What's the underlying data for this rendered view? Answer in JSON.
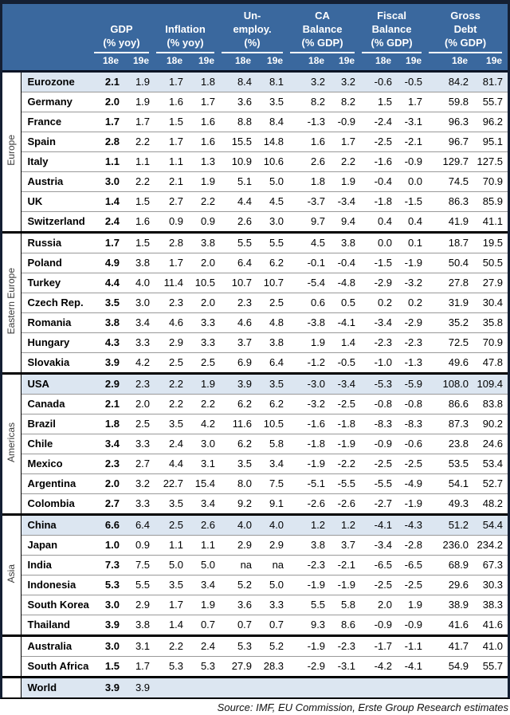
{
  "header": {
    "column_groups": [
      {
        "title_lines": [
          "GDP"
        ],
        "subtitle": "(% yoy)"
      },
      {
        "title_lines": [
          "Inflation"
        ],
        "subtitle": "(% yoy)"
      },
      {
        "title_lines": [
          "Un-",
          "employ."
        ],
        "subtitle": "(%)"
      },
      {
        "title_lines": [
          "CA",
          "Balance"
        ],
        "subtitle": "(% GDP)"
      },
      {
        "title_lines": [
          "Fiscal",
          "Balance"
        ],
        "subtitle": "(% GDP)"
      },
      {
        "title_lines": [
          "Gross",
          "Debt"
        ],
        "subtitle": "(% GDP)"
      }
    ],
    "year_labels": [
      "18e",
      "19e"
    ]
  },
  "groups": [
    {
      "label": "Europe",
      "rows": [
        {
          "country": "Eurozone",
          "highlight": true,
          "values": [
            "2.1",
            "1.9",
            "1.7",
            "1.8",
            "8.4",
            "8.1",
            "3.2",
            "3.2",
            "-0.6",
            "-0.5",
            "84.2",
            "81.7"
          ]
        },
        {
          "country": "Germany",
          "highlight": false,
          "values": [
            "2.0",
            "1.9",
            "1.6",
            "1.7",
            "3.6",
            "3.5",
            "8.2",
            "8.2",
            "1.5",
            "1.7",
            "59.8",
            "55.7"
          ]
        },
        {
          "country": "France",
          "highlight": false,
          "values": [
            "1.7",
            "1.7",
            "1.5",
            "1.6",
            "8.8",
            "8.4",
            "-1.3",
            "-0.9",
            "-2.4",
            "-3.1",
            "96.3",
            "96.2"
          ]
        },
        {
          "country": "Spain",
          "highlight": false,
          "values": [
            "2.8",
            "2.2",
            "1.7",
            "1.6",
            "15.5",
            "14.8",
            "1.6",
            "1.7",
            "-2.5",
            "-2.1",
            "96.7",
            "95.1"
          ]
        },
        {
          "country": "Italy",
          "highlight": false,
          "values": [
            "1.1",
            "1.1",
            "1.1",
            "1.3",
            "10.9",
            "10.6",
            "2.6",
            "2.2",
            "-1.6",
            "-0.9",
            "129.7",
            "127.5"
          ]
        },
        {
          "country": "Austria",
          "highlight": false,
          "values": [
            "3.0",
            "2.2",
            "2.1",
            "1.9",
            "5.1",
            "5.0",
            "1.8",
            "1.9",
            "-0.4",
            "0.0",
            "74.5",
            "70.9"
          ]
        },
        {
          "country": "UK",
          "highlight": false,
          "values": [
            "1.4",
            "1.5",
            "2.7",
            "2.2",
            "4.4",
            "4.5",
            "-3.7",
            "-3.4",
            "-1.8",
            "-1.5",
            "86.3",
            "85.9"
          ]
        },
        {
          "country": "Switzerland",
          "highlight": false,
          "values": [
            "2.4",
            "1.6",
            "0.9",
            "0.9",
            "2.6",
            "3.0",
            "9.7",
            "9.4",
            "0.4",
            "0.4",
            "41.9",
            "41.1"
          ]
        }
      ]
    },
    {
      "label": "Eastern Europe",
      "rows": [
        {
          "country": "Russia",
          "highlight": false,
          "values": [
            "1.7",
            "1.5",
            "2.8",
            "3.8",
            "5.5",
            "5.5",
            "4.5",
            "3.8",
            "0.0",
            "0.1",
            "18.7",
            "19.5"
          ]
        },
        {
          "country": "Poland",
          "highlight": false,
          "values": [
            "4.9",
            "3.8",
            "1.7",
            "2.0",
            "6.4",
            "6.2",
            "-0.1",
            "-0.4",
            "-1.5",
            "-1.9",
            "50.4",
            "50.5"
          ]
        },
        {
          "country": "Turkey",
          "highlight": false,
          "values": [
            "4.4",
            "4.0",
            "11.4",
            "10.5",
            "10.7",
            "10.7",
            "-5.4",
            "-4.8",
            "-2.9",
            "-3.2",
            "27.8",
            "27.9"
          ]
        },
        {
          "country": "Czech Rep.",
          "highlight": false,
          "values": [
            "3.5",
            "3.0",
            "2.3",
            "2.0",
            "2.3",
            "2.5",
            "0.6",
            "0.5",
            "0.2",
            "0.2",
            "31.9",
            "30.4"
          ]
        },
        {
          "country": "Romania",
          "highlight": false,
          "values": [
            "3.8",
            "3.4",
            "4.6",
            "3.3",
            "4.6",
            "4.8",
            "-3.8",
            "-4.1",
            "-3.4",
            "-2.9",
            "35.2",
            "35.8"
          ]
        },
        {
          "country": "Hungary",
          "highlight": false,
          "values": [
            "4.3",
            "3.3",
            "2.9",
            "3.3",
            "3.7",
            "3.8",
            "1.9",
            "1.4",
            "-2.3",
            "-2.3",
            "72.5",
            "70.9"
          ]
        },
        {
          "country": "Slovakia",
          "highlight": false,
          "values": [
            "3.9",
            "4.2",
            "2.5",
            "2.5",
            "6.9",
            "6.4",
            "-1.2",
            "-0.5",
            "-1.0",
            "-1.3",
            "49.6",
            "47.8"
          ]
        }
      ]
    },
    {
      "label": "Americas",
      "rows": [
        {
          "country": "USA",
          "highlight": true,
          "values": [
            "2.9",
            "2.3",
            "2.2",
            "1.9",
            "3.9",
            "3.5",
            "-3.0",
            "-3.4",
            "-5.3",
            "-5.9",
            "108.0",
            "109.4"
          ]
        },
        {
          "country": "Canada",
          "highlight": false,
          "values": [
            "2.1",
            "2.0",
            "2.2",
            "2.2",
            "6.2",
            "6.2",
            "-3.2",
            "-2.5",
            "-0.8",
            "-0.8",
            "86.6",
            "83.8"
          ]
        },
        {
          "country": "Brazil",
          "highlight": false,
          "values": [
            "1.8",
            "2.5",
            "3.5",
            "4.2",
            "11.6",
            "10.5",
            "-1.6",
            "-1.8",
            "-8.3",
            "-8.3",
            "87.3",
            "90.2"
          ]
        },
        {
          "country": "Chile",
          "highlight": false,
          "values": [
            "3.4",
            "3.3",
            "2.4",
            "3.0",
            "6.2",
            "5.8",
            "-1.8",
            "-1.9",
            "-0.9",
            "-0.6",
            "23.8",
            "24.6"
          ]
        },
        {
          "country": "Mexico",
          "highlight": false,
          "values": [
            "2.3",
            "2.7",
            "4.4",
            "3.1",
            "3.5",
            "3.4",
            "-1.9",
            "-2.2",
            "-2.5",
            "-2.5",
            "53.5",
            "53.4"
          ]
        },
        {
          "country": "Argentina",
          "highlight": false,
          "values": [
            "2.0",
            "3.2",
            "22.7",
            "15.4",
            "8.0",
            "7.5",
            "-5.1",
            "-5.5",
            "-5.5",
            "-4.9",
            "54.1",
            "52.7"
          ]
        },
        {
          "country": "Colombia",
          "highlight": false,
          "values": [
            "2.7",
            "3.3",
            "3.5",
            "3.4",
            "9.2",
            "9.1",
            "-2.6",
            "-2.6",
            "-2.7",
            "-1.9",
            "49.3",
            "48.2"
          ]
        }
      ]
    },
    {
      "label": "Asia",
      "rows": [
        {
          "country": "China",
          "highlight": true,
          "values": [
            "6.6",
            "6.4",
            "2.5",
            "2.6",
            "4.0",
            "4.0",
            "1.2",
            "1.2",
            "-4.1",
            "-4.3",
            "51.2",
            "54.4"
          ]
        },
        {
          "country": "Japan",
          "highlight": false,
          "values": [
            "1.0",
            "0.9",
            "1.1",
            "1.1",
            "2.9",
            "2.9",
            "3.8",
            "3.7",
            "-3.4",
            "-2.8",
            "236.0",
            "234.2"
          ]
        },
        {
          "country": "India",
          "highlight": false,
          "values": [
            "7.3",
            "7.5",
            "5.0",
            "5.0",
            "na",
            "na",
            "-2.3",
            "-2.1",
            "-6.5",
            "-6.5",
            "68.9",
            "67.3"
          ]
        },
        {
          "country": "Indonesia",
          "highlight": false,
          "values": [
            "5.3",
            "5.5",
            "3.5",
            "3.4",
            "5.2",
            "5.0",
            "-1.9",
            "-1.9",
            "-2.5",
            "-2.5",
            "29.6",
            "30.3"
          ]
        },
        {
          "country": "South Korea",
          "highlight": false,
          "values": [
            "3.0",
            "2.9",
            "1.7",
            "1.9",
            "3.6",
            "3.3",
            "5.5",
            "5.8",
            "2.0",
            "1.9",
            "38.9",
            "38.3"
          ]
        },
        {
          "country": "Thailand",
          "highlight": false,
          "values": [
            "3.9",
            "3.8",
            "1.4",
            "0.7",
            "0.7",
            "0.7",
            "9.3",
            "8.6",
            "-0.9",
            "-0.9",
            "41.6",
            "41.6"
          ]
        }
      ]
    },
    {
      "label": "",
      "rows": [
        {
          "country": "Australia",
          "highlight": false,
          "values": [
            "3.0",
            "3.1",
            "2.2",
            "2.4",
            "5.3",
            "5.2",
            "-1.9",
            "-2.3",
            "-1.7",
            "-1.1",
            "41.7",
            "41.0"
          ]
        },
        {
          "country": "South Africa",
          "highlight": false,
          "values": [
            "1.5",
            "1.7",
            "5.3",
            "5.3",
            "27.9",
            "28.3",
            "-2.9",
            "-3.1",
            "-4.2",
            "-4.1",
            "54.9",
            "55.7"
          ]
        }
      ]
    },
    {
      "label": "",
      "rows": [
        {
          "country": "World",
          "highlight": true,
          "values": [
            "3.9",
            "3.9",
            "",
            "",
            "",
            "",
            "",
            "",
            "",
            "",
            "",
            ""
          ]
        }
      ]
    }
  ],
  "footer": {
    "source": "Source: IMF, EU Commission, Erste Group Research estimates"
  },
  "colors": {
    "header_bg": "#3a689e",
    "header_border": "#141f33",
    "highlight_row": "#dce6f1",
    "row_line": "#999999",
    "group_line": "#000000"
  }
}
